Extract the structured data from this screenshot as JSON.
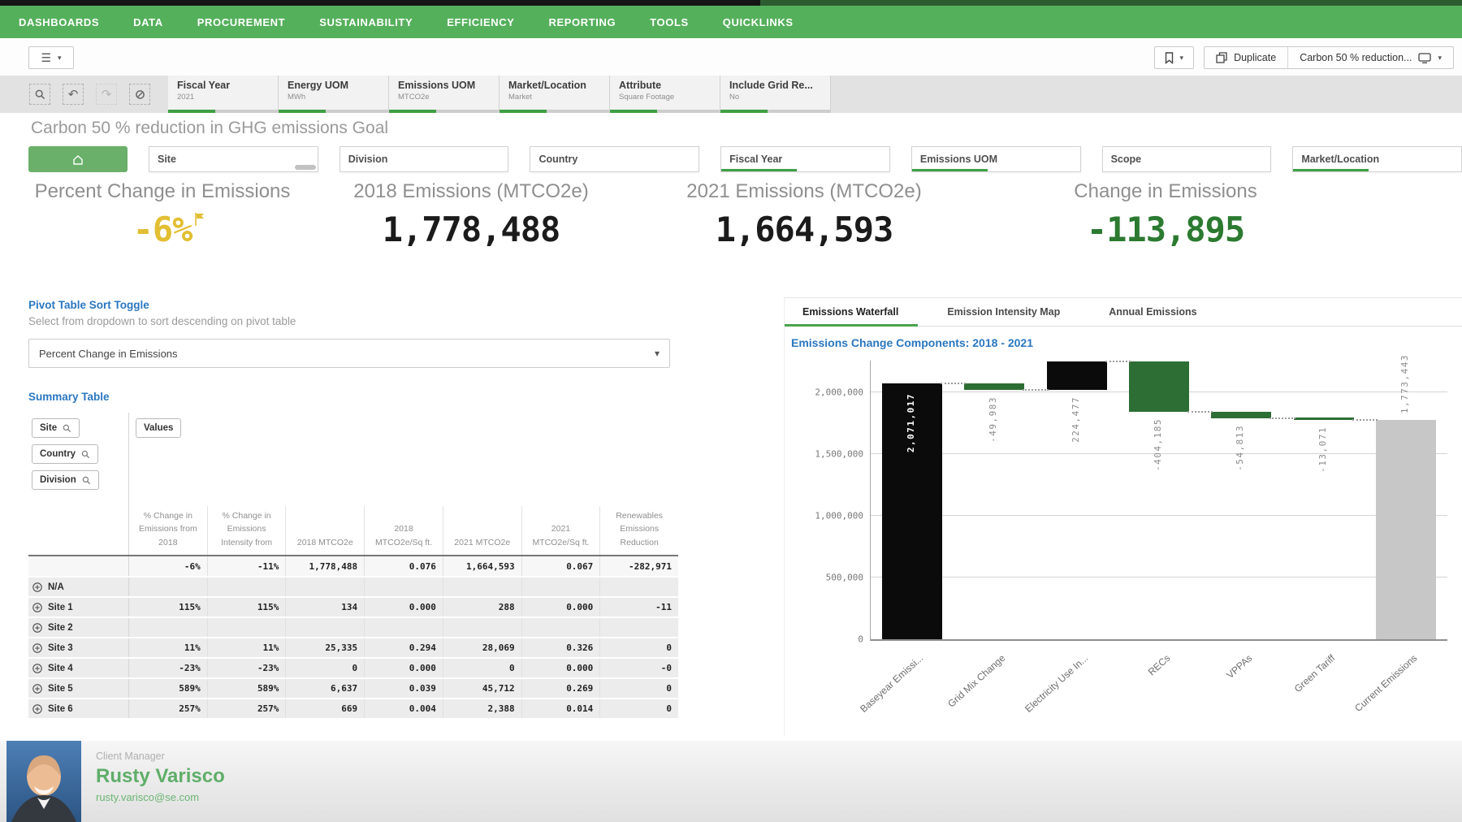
{
  "nav": {
    "items": [
      "DASHBOARDS",
      "DATA",
      "PROCUREMENT",
      "SUSTAINABILITY",
      "EFFICIENCY",
      "REPORTING",
      "TOOLS",
      "QUICKLINKS"
    ]
  },
  "toolbar": {
    "duplicate_label": "Duplicate",
    "sheet_title": "Carbon 50 % reduction..."
  },
  "selections": {
    "chips": [
      {
        "field": "Fiscal Year",
        "value": "2021"
      },
      {
        "field": "Energy UOM",
        "value": "MWh"
      },
      {
        "field": "Emissions UOM",
        "value": "MTCO2e"
      },
      {
        "field": "Market/Location",
        "value": "Market"
      },
      {
        "field": "Attribute",
        "value": "Square Footage"
      },
      {
        "field": "Include Grid Re...",
        "value": "No"
      }
    ]
  },
  "page": {
    "title": "Carbon 50 % reduction in GHG emissions Goal"
  },
  "filters": {
    "boxes": [
      {
        "label": "Site",
        "accent": false,
        "scrollbar": true
      },
      {
        "label": "Division",
        "accent": false,
        "scrollbar": false
      },
      {
        "label": "Country",
        "accent": false,
        "scrollbar": false
      },
      {
        "label": "Fiscal Year",
        "accent": true,
        "scrollbar": false
      },
      {
        "label": "Emissions UOM",
        "accent": true,
        "scrollbar": false
      },
      {
        "label": "Scope",
        "accent": false,
        "scrollbar": false
      },
      {
        "label": "Market/Location",
        "accent": true,
        "scrollbar": false
      }
    ]
  },
  "kpis": [
    {
      "label": "Percent Change in Emissions",
      "value": "-6%",
      "color": "#e2be32",
      "flag": true
    },
    {
      "label": "2018 Emissions (MTCO2e)",
      "value": "1,778,488",
      "color": "#1b1b1b",
      "flag": false
    },
    {
      "label": "2021 Emissions (MTCO2e)",
      "value": "1,664,593",
      "color": "#1b1b1b",
      "flag": false
    },
    {
      "label": "Change in Emissions",
      "value": "-113,895",
      "color": "#2b7a30",
      "flag": false
    }
  ],
  "sort_toggle": {
    "title": "Pivot Table Sort Toggle",
    "subtitle": "Select from dropdown to sort descending on pivot table",
    "selected": "Percent Change in Emissions"
  },
  "summary_table": {
    "title": "Summary Table",
    "row_dims": [
      "Site",
      "Country",
      "Division"
    ],
    "values_label": "Values",
    "columns": [
      "% Change in Emissions from 2018",
      "% Change in Emissions Intensity from",
      "2018 MTCO2e",
      "2018 MTCO2e/Sq ft.",
      "2021 MTCO2e",
      "2021 MTCO2e/Sq ft.",
      "Renewables Emissions Reduction"
    ],
    "totals": [
      "-6%",
      "-11%",
      "1,778,488",
      "0.076",
      "1,664,593",
      "0.067",
      "-282,971"
    ],
    "rows": [
      {
        "name": "N/A",
        "cells": [
          "",
          "",
          "",
          "",
          "",
          "",
          ""
        ]
      },
      {
        "name": "Site 1",
        "cells": [
          "115%",
          "115%",
          "134",
          "0.000",
          "288",
          "0.000",
          "-11"
        ]
      },
      {
        "name": "Site 2",
        "cells": [
          "",
          "",
          "",
          "",
          "",
          "",
          ""
        ]
      },
      {
        "name": "Site 3",
        "cells": [
          "11%",
          "11%",
          "25,335",
          "0.294",
          "28,069",
          "0.326",
          "0"
        ]
      },
      {
        "name": "Site 4",
        "cells": [
          "-23%",
          "-23%",
          "0",
          "0.000",
          "0",
          "0.000",
          "-0"
        ]
      },
      {
        "name": "Site 5",
        "cells": [
          "589%",
          "589%",
          "6,637",
          "0.039",
          "45,712",
          "0.269",
          "0"
        ]
      },
      {
        "name": "Site 6",
        "cells": [
          "257%",
          "257%",
          "669",
          "0.004",
          "2,388",
          "0.014",
          "0"
        ]
      }
    ]
  },
  "panel": {
    "tabs": [
      {
        "label": "Emissions Waterfall",
        "active": true
      },
      {
        "label": "Emission Intensity Map",
        "active": false
      },
      {
        "label": "Annual Emissions",
        "active": false
      }
    ]
  },
  "chart_data": {
    "type": "bar",
    "subtype": "waterfall",
    "title": "Emissions Change Components: 2018 - 2021",
    "categories": [
      "Baseyear Emissi...",
      "Grid Mix Change",
      "Electricity Use In...",
      "RECs",
      "VPPAs",
      "Green Tariff",
      "Current Emissions"
    ],
    "values": [
      2071017,
      -49983,
      224477,
      -404185,
      -54813,
      -13071,
      1773443
    ],
    "value_labels": [
      "2,071,017",
      "-49,983",
      "224,477",
      "-404,185",
      "-54,813",
      "-13,071",
      "1,773,443"
    ],
    "bar_types": [
      "total",
      "delta",
      "delta",
      "delta",
      "delta",
      "delta",
      "total"
    ],
    "bar_colors": [
      "#0b0b0b",
      "#2c6e33",
      "#0b0b0b",
      "#2c6e33",
      "#2c6e33",
      "#2c6e33",
      "#c7c7c7"
    ],
    "label_pos": [
      "inside",
      "below",
      "below",
      "below",
      "below",
      "below",
      "above"
    ],
    "ylim": [
      0,
      2255000
    ],
    "yticks": [
      {
        "v": 0,
        "label": "0"
      },
      {
        "v": 500000,
        "label": "500,000"
      },
      {
        "v": 1000000,
        "label": "1,000,000"
      },
      {
        "v": 1500000,
        "label": "1,500,000"
      },
      {
        "v": 2000000,
        "label": "2,000,000"
      }
    ],
    "grid": true,
    "legend": false
  },
  "footer": {
    "role": "Client Manager",
    "name": "Rusty Varisco",
    "email": "rusty.varisco@se.com"
  }
}
